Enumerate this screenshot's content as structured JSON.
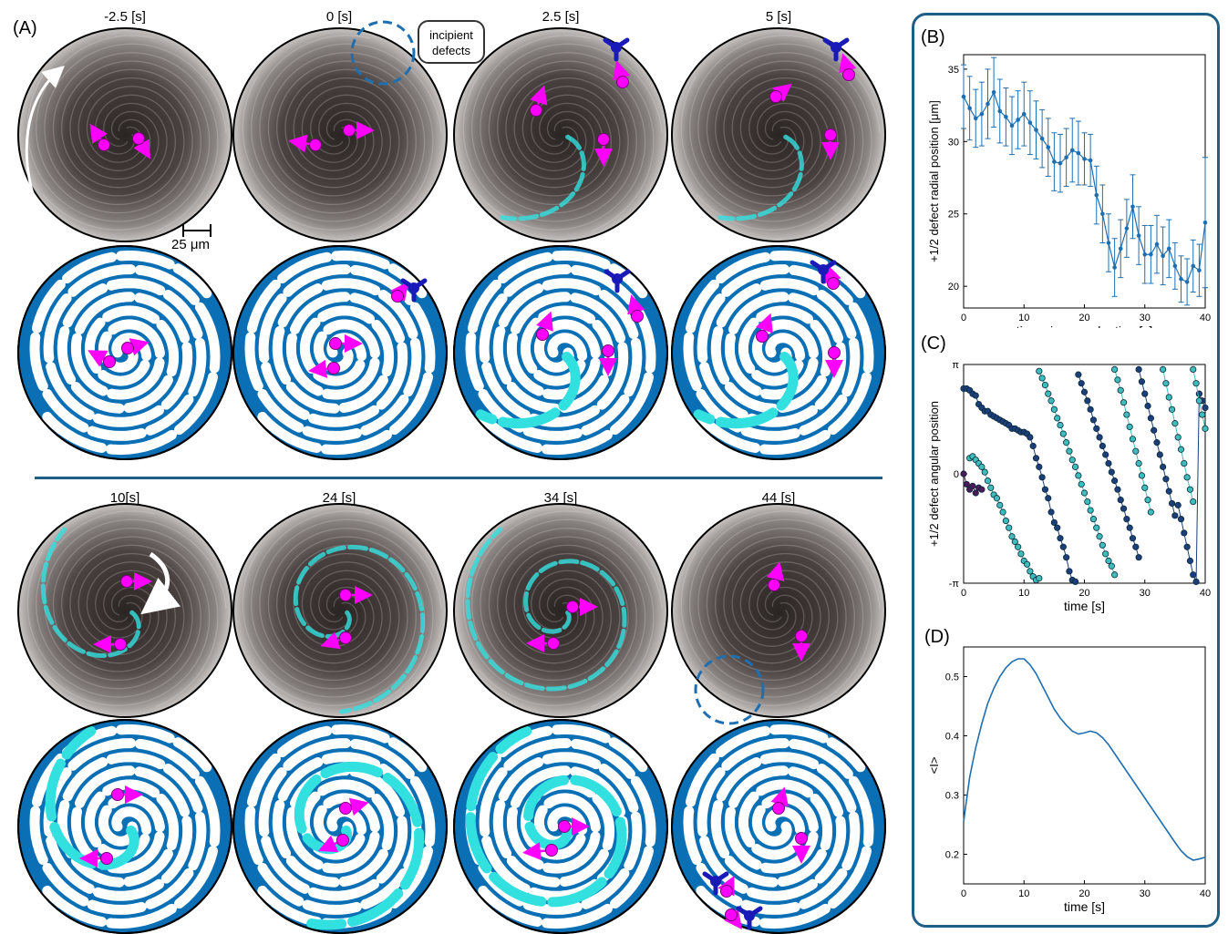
{
  "panel_A": {
    "letter": "(A)",
    "top_times": [
      "-2.5 [s]",
      "0 [s]",
      "2.5 [s]",
      "5 [s]"
    ],
    "bottom_times": [
      "10[s]",
      "24 [s]",
      "34 [s]",
      "44 [s]"
    ],
    "scale_bar": "25 μm",
    "callout": "incipient defects",
    "callout_line1": "incipient",
    "callout_line2": "defects"
  },
  "colors": {
    "blue": "#0a6fb4",
    "cyan": "#33e0e0",
    "magenta": "#ff00ff",
    "navy": "#1a1ab8",
    "frame": "#1f5f86",
    "line": "#1f6fb0"
  },
  "chart_data": [
    {
      "panel": "(B)",
      "type": "line",
      "title": "",
      "xlabel": "time since nucleation [s]",
      "ylabel": "+1/2 defect radial position [μm]",
      "xlim": [
        0,
        40
      ],
      "ylim": [
        18.5,
        36
      ],
      "xticks": [
        0,
        10,
        20,
        30,
        40
      ],
      "yticks": [
        20,
        25,
        30,
        35
      ],
      "x": [
        0,
        1,
        2,
        3,
        4,
        5,
        6,
        7,
        8,
        9,
        10,
        11,
        12,
        13,
        14,
        15,
        16,
        17,
        18,
        19,
        20,
        21,
        22,
        23,
        24,
        25,
        26,
        27,
        28,
        29,
        30,
        31,
        32,
        33,
        34,
        35,
        36,
        37,
        38,
        39,
        40
      ],
      "values": [
        33.1,
        32.3,
        31.6,
        31.9,
        32.6,
        33.4,
        32.1,
        31.7,
        31.1,
        31.5,
        31.9,
        31.3,
        30.8,
        30.2,
        29.6,
        28.6,
        28.5,
        28.9,
        29.4,
        29.2,
        28.8,
        28.7,
        26.3,
        25.0,
        23.0,
        21.3,
        22.6,
        24.0,
        25.5,
        23.5,
        22.2,
        22.2,
        22.9,
        22.1,
        22.6,
        21.4,
        20.5,
        20.3,
        21.4,
        21.1,
        24.4
      ],
      "errors": [
        2.2,
        2.2,
        2.0,
        2.2,
        2.4,
        2.4,
        2.2,
        2.0,
        2.0,
        2.0,
        2.2,
        2.2,
        2.0,
        2.0,
        2.0,
        2.0,
        2.0,
        2.0,
        2.2,
        2.2,
        1.8,
        1.8,
        2.0,
        2.0,
        2.0,
        2.0,
        2.0,
        2.0,
        2.2,
        2.0,
        2.0,
        2.0,
        2.0,
        2.0,
        2.0,
        1.6,
        1.6,
        1.6,
        1.8,
        1.8,
        4.5
      ]
    },
    {
      "panel": "(C)",
      "type": "scatter",
      "title": "",
      "xlabel": "time [s]",
      "ylabel": "+1/2 defect angular position",
      "xlim": [
        0,
        40
      ],
      "ylim": [
        -3.1416,
        3.1416
      ],
      "xticks": [
        0,
        10,
        20,
        30,
        40
      ],
      "ytick_labels": [
        "-π",
        "0",
        "π"
      ],
      "ytick_values": [
        -3.1416,
        0,
        3.1416
      ],
      "series": [
        {
          "color": "#4a1a5a",
          "x": [
            0,
            0.5,
            1,
            1.5,
            2,
            2.5,
            3
          ],
          "y": [
            0.0,
            -0.3,
            -0.45,
            -0.35,
            -0.55,
            -0.4,
            -0.45
          ]
        },
        {
          "color": "#1c3f7a",
          "x": [
            0,
            0.5,
            1,
            1.5,
            2,
            2.5,
            3,
            3.5,
            4,
            4.5,
            5,
            5.5,
            6,
            6.5,
            7,
            7.5,
            8,
            8.5,
            9,
            9.5,
            10,
            10.5,
            11,
            11.5,
            12,
            12.5,
            13,
            13.5,
            14,
            14.5,
            15,
            15.5,
            16,
            16.5,
            17,
            17.5,
            18,
            18.5
          ],
          "y": [
            2.45,
            2.45,
            2.4,
            2.3,
            2.25,
            2.0,
            1.9,
            1.8,
            1.8,
            1.7,
            1.65,
            1.6,
            1.55,
            1.5,
            1.45,
            1.4,
            1.3,
            1.3,
            1.25,
            1.2,
            1.2,
            1.15,
            1.05,
            0.8,
            0.45,
            0.2,
            -0.1,
            -0.45,
            -0.7,
            -1.1,
            -1.4,
            -1.55,
            -1.85,
            -2.1,
            -2.4,
            -2.8,
            -3.05,
            -3.1
          ]
        },
        {
          "color": "#3fbcbc",
          "x": [
            1,
            1.5,
            2,
            2.5,
            3,
            3.5,
            4,
            4.5,
            5,
            5.5,
            6,
            6.5,
            7,
            7.5,
            8,
            8.5,
            9,
            9.5,
            10,
            10.5,
            11,
            11.5,
            12,
            12.5
          ],
          "y": [
            0.45,
            0.5,
            0.4,
            0.3,
            0.2,
            0.05,
            -0.2,
            -0.4,
            -0.6,
            -0.7,
            -0.9,
            -1.1,
            -1.35,
            -1.55,
            -1.8,
            -1.95,
            -2.1,
            -2.3,
            -2.5,
            -2.6,
            -2.8,
            -2.95,
            -3.05,
            -3.0
          ]
        },
        {
          "color": "#3fbcbc",
          "x": [
            12.5,
            13,
            13.5,
            14,
            14.5,
            15,
            15.5,
            16,
            16.5,
            17,
            17.5,
            18,
            18.5,
            19,
            19.5,
            20,
            20.5,
            21,
            21.5,
            22,
            22.5,
            23,
            23.5,
            24,
            24.5,
            25
          ],
          "y": [
            2.95,
            2.75,
            2.55,
            2.3,
            2.1,
            1.85,
            1.6,
            1.4,
            1.15,
            0.9,
            0.65,
            0.4,
            0.2,
            -0.05,
            -0.3,
            -0.55,
            -0.8,
            -1.05,
            -1.3,
            -1.55,
            -1.8,
            -2.05,
            -2.3,
            -2.5,
            -2.65,
            -2.9
          ]
        },
        {
          "color": "#1c3f7a",
          "x": [
            19,
            19.5,
            20,
            20.5,
            21,
            21.5,
            22,
            22.5,
            23,
            23.5,
            24,
            24.5,
            25,
            25.5,
            26,
            26.5,
            27,
            27.5,
            28,
            28.5,
            29
          ],
          "y": [
            2.85,
            2.6,
            2.35,
            2.1,
            1.85,
            1.55,
            1.3,
            1.05,
            0.8,
            0.55,
            0.3,
            0.05,
            -0.2,
            -0.45,
            -0.75,
            -1.0,
            -1.3,
            -1.55,
            -1.85,
            -2.1,
            -2.4
          ]
        },
        {
          "color": "#3fbcbc",
          "x": [
            25,
            25.5,
            26,
            26.5,
            27,
            27.5,
            28,
            28.5,
            29,
            29.5,
            30,
            30.5,
            31
          ],
          "y": [
            3.0,
            2.7,
            2.4,
            2.05,
            1.7,
            1.35,
            1.0,
            0.65,
            0.3,
            -0.05,
            -0.4,
            -0.75,
            -1.1
          ]
        },
        {
          "color": "#1c3f7a",
          "x": [
            29,
            29.5,
            30,
            30.5,
            31,
            31.5,
            32,
            32.5,
            33,
            33.5,
            34,
            34.5,
            35
          ],
          "y": [
            3.0,
            2.65,
            2.3,
            1.95,
            1.6,
            1.25,
            0.9,
            0.55,
            0.2,
            -0.15,
            -0.5,
            -0.85,
            -1.2
          ]
        },
        {
          "color": "#3fbcbc",
          "x": [
            33,
            33.5,
            34,
            34.5,
            35,
            35.5,
            36,
            36.5,
            37,
            37.5,
            38
          ],
          "y": [
            3.0,
            2.6,
            2.2,
            1.85,
            1.45,
            1.05,
            0.7,
            0.3,
            -0.1,
            -0.45,
            -0.8
          ]
        },
        {
          "color": "#1c3f7a",
          "x": [
            35.5,
            36,
            36.5,
            37,
            37.5,
            38,
            38.5,
            39,
            39.5,
            40
          ],
          "y": [
            -0.9,
            -1.3,
            -1.7,
            -2.1,
            -2.5,
            -2.9,
            -3.1,
            2.3,
            2.1,
            1.9
          ]
        },
        {
          "color": "#3fbcbc",
          "x": [
            38,
            38.5,
            39,
            39.5,
            40
          ],
          "y": [
            3.0,
            2.6,
            2.1,
            1.7,
            1.3
          ]
        }
      ]
    },
    {
      "panel": "(D)",
      "type": "line",
      "title": "",
      "xlabel": "time [s]",
      "ylabel": "<I>",
      "xlim": [
        0,
        40
      ],
      "ylim": [
        0.15,
        0.55
      ],
      "xticks": [
        0,
        10,
        20,
        30,
        40
      ],
      "yticks": [
        0.2,
        0.3,
        0.4,
        0.5
      ],
      "x": [
        0,
        1,
        2,
        3,
        4,
        5,
        6,
        7,
        8,
        9,
        10,
        11,
        12,
        13,
        14,
        15,
        16,
        17,
        18,
        19,
        20,
        21,
        22,
        23,
        24,
        25,
        26,
        27,
        28,
        29,
        30,
        31,
        32,
        33,
        34,
        35,
        36,
        37,
        38,
        39,
        40
      ],
      "values": [
        0.255,
        0.33,
        0.38,
        0.42,
        0.455,
        0.48,
        0.5,
        0.515,
        0.525,
        0.53,
        0.53,
        0.52,
        0.505,
        0.485,
        0.465,
        0.445,
        0.43,
        0.418,
        0.408,
        0.403,
        0.405,
        0.408,
        0.405,
        0.397,
        0.385,
        0.37,
        0.355,
        0.34,
        0.325,
        0.31,
        0.295,
        0.28,
        0.265,
        0.25,
        0.235,
        0.22,
        0.206,
        0.196,
        0.19,
        0.192,
        0.195
      ]
    }
  ]
}
